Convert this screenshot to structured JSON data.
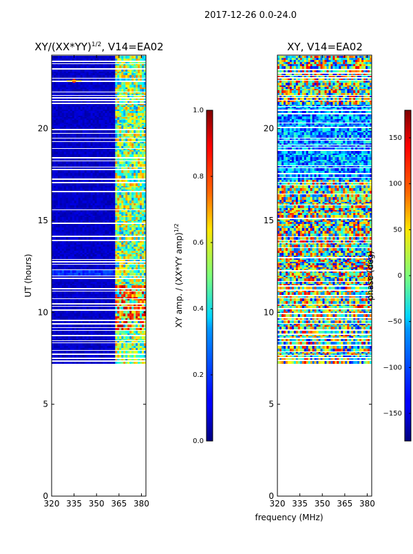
{
  "page_title": "2017-12-26 0.0-24.0",
  "chart_data": [
    {
      "type": "heatmap",
      "title_main": "XY/(XX*YY)",
      "title_sup": "1/2",
      "title_rest": ", V14=EA02",
      "ylabel": "UT (hours)",
      "xlabel": "",
      "xlim": [
        320,
        383
      ],
      "ylim": [
        0,
        24
      ],
      "xticks": [
        320,
        335,
        350,
        365,
        380
      ],
      "yticks": [
        0,
        5,
        10,
        15,
        20
      ],
      "data_start_hour": 7.2,
      "colorbar": {
        "label_main": "XY amp. / (XX*YY amp)",
        "label_sup": "1/2",
        "range": [
          0.0,
          1.0
        ],
        "ticks": [
          "0.0",
          "0.2",
          "0.4",
          "0.6",
          "0.8",
          "1.0"
        ]
      }
    },
    {
      "type": "heatmap",
      "title": "XY, V14=EA02",
      "ylabel": "",
      "xlabel": "frequency (MHz)",
      "xlim": [
        320,
        383
      ],
      "ylim": [
        0,
        24
      ],
      "xticks": [
        320,
        335,
        350,
        365,
        380
      ],
      "yticks": [
        0,
        5,
        10,
        15,
        20
      ],
      "data_start_hour": 7.2,
      "colorbar": {
        "label": "phase (deg)",
        "range": [
          -180,
          180
        ],
        "ticks": [
          "−150",
          "−100",
          "−50",
          "0",
          "50",
          "100",
          "150"
        ]
      }
    }
  ]
}
